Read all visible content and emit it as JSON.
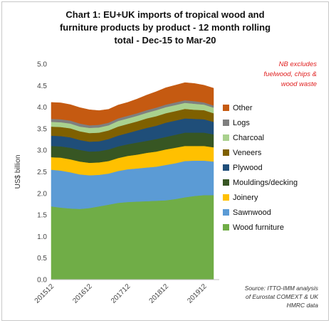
{
  "chart_data": {
    "type": "area",
    "title_lines": [
      "Chart 1: EU+UK imports of tropical wood and",
      "furniture products by product - 12 month rolling",
      "total - Dec-15 to Mar-20"
    ],
    "ylabel": "US$ billion",
    "ylim": [
      0,
      5.0
    ],
    "yticks": [
      "0.0",
      "0.5",
      "1.0",
      "1.5",
      "2.0",
      "2.5",
      "3.0",
      "3.5",
      "4.0",
      "4.5",
      "5.0"
    ],
    "x": [
      "201512",
      "201603",
      "201606",
      "201609",
      "201612",
      "201703",
      "201706",
      "201709",
      "201712",
      "201803",
      "201806",
      "201809",
      "201812",
      "201903",
      "201906",
      "201909",
      "201912",
      "202003"
    ],
    "xtick_labels": [
      "201512",
      "201612",
      "201712",
      "201812",
      "201912"
    ],
    "series": [
      {
        "name": "Wood furniture",
        "color": "#70ad47",
        "values": [
          1.7,
          1.67,
          1.65,
          1.64,
          1.66,
          1.7,
          1.74,
          1.78,
          1.8,
          1.81,
          1.82,
          1.83,
          1.84,
          1.87,
          1.91,
          1.94,
          1.96,
          1.96
        ]
      },
      {
        "name": "Sawnwood",
        "color": "#5b9bd5",
        "values": [
          0.85,
          0.86,
          0.84,
          0.8,
          0.76,
          0.73,
          0.72,
          0.74,
          0.76,
          0.77,
          0.78,
          0.79,
          0.82,
          0.83,
          0.84,
          0.82,
          0.8,
          0.78
        ]
      },
      {
        "name": "Joinery",
        "color": "#ffc000",
        "values": [
          0.29,
          0.3,
          0.3,
          0.3,
          0.29,
          0.29,
          0.29,
          0.3,
          0.31,
          0.32,
          0.34,
          0.35,
          0.36,
          0.36,
          0.35,
          0.34,
          0.34,
          0.33
        ]
      },
      {
        "name": "Mouldings/decking",
        "color": "#375623",
        "values": [
          0.26,
          0.26,
          0.27,
          0.27,
          0.26,
          0.26,
          0.27,
          0.27,
          0.27,
          0.28,
          0.28,
          0.29,
          0.29,
          0.3,
          0.31,
          0.31,
          0.31,
          0.3
        ]
      },
      {
        "name": "Plywood",
        "color": "#1f4e79",
        "values": [
          0.24,
          0.24,
          0.24,
          0.23,
          0.23,
          0.23,
          0.24,
          0.25,
          0.26,
          0.28,
          0.3,
          0.31,
          0.33,
          0.33,
          0.33,
          0.32,
          0.31,
          0.29
        ]
      },
      {
        "name": "Veneers",
        "color": "#7f6000",
        "values": [
          0.21,
          0.21,
          0.21,
          0.2,
          0.2,
          0.2,
          0.2,
          0.21,
          0.21,
          0.21,
          0.22,
          0.22,
          0.22,
          0.22,
          0.22,
          0.21,
          0.21,
          0.2
        ]
      },
      {
        "name": "Charcoal",
        "color": "#a9d18e",
        "values": [
          0.11,
          0.11,
          0.11,
          0.11,
          0.12,
          0.12,
          0.12,
          0.13,
          0.13,
          0.13,
          0.13,
          0.14,
          0.14,
          0.14,
          0.14,
          0.14,
          0.13,
          0.13
        ]
      },
      {
        "name": "Logs",
        "color": "#7f7f7f",
        "values": [
          0.07,
          0.07,
          0.07,
          0.07,
          0.06,
          0.06,
          0.06,
          0.06,
          0.06,
          0.06,
          0.06,
          0.06,
          0.06,
          0.06,
          0.06,
          0.06,
          0.05,
          0.05
        ]
      },
      {
        "name": "Other",
        "color": "#c55a11",
        "values": [
          0.38,
          0.38,
          0.37,
          0.37,
          0.36,
          0.33,
          0.31,
          0.31,
          0.31,
          0.33,
          0.35,
          0.37,
          0.39,
          0.4,
          0.41,
          0.41,
          0.4,
          0.4
        ]
      }
    ],
    "legend_order": [
      "Other",
      "Logs",
      "Charcoal",
      "Veneers",
      "Plywood",
      "Mouldings/decking",
      "Joinery",
      "Sawnwood",
      "Wood furniture"
    ],
    "note_lines": [
      "NB excludes",
      "fuelwood, chips &",
      "wood waste"
    ],
    "source_lines": [
      "Source: ITTO-IMM analysis",
      "of Eurostat COMEXT & UK",
      "HMRC data"
    ],
    "grid": false,
    "legend_position": "right"
  }
}
